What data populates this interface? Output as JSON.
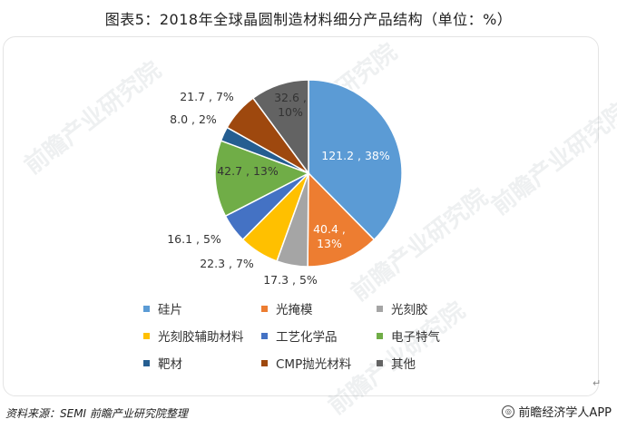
{
  "title": "图表5：2018年全球晶圆制造材料细分产品结构（单位：%）",
  "source": "资料来源：SEMI 前瞻产业研究院整理",
  "brand": "前瞻经济学人APP",
  "watermark": "前瞻产业研究院",
  "return_mark": "↵",
  "chart_data": {
    "type": "pie",
    "title": "图表5：2018年全球晶圆制造材料细分产品结构（单位：%）",
    "categories": [
      "硅片",
      "光掩模",
      "光刻胶",
      "光刻胶辅助材料",
      "工艺化学品",
      "电子特气",
      "靶材",
      "CMP抛光材料",
      "其他"
    ],
    "values": [
      121.2,
      40.4,
      17.3,
      22.3,
      16.1,
      42.7,
      8.0,
      21.7,
      32.6
    ],
    "percents": [
      38,
      13,
      5,
      7,
      5,
      13,
      2,
      7,
      10
    ],
    "colors": [
      "#5b9bd5",
      "#ed7d31",
      "#a5a5a5",
      "#ffc000",
      "#4472c4",
      "#70ad47",
      "#255e91",
      "#9e480e",
      "#636363"
    ],
    "data_labels": [
      "121.2 , 38%",
      "40.4 , 13%",
      "17.3 , 5%",
      "22.3 , 7%",
      "16.1 , 5%",
      "42.7 , 13%",
      "8.0 , 2%",
      "21.7 , 7%",
      "32.6 , 10%"
    ],
    "legend_position": "bottom",
    "start_angle": "12 o'clock",
    "direction": "clockwise"
  }
}
